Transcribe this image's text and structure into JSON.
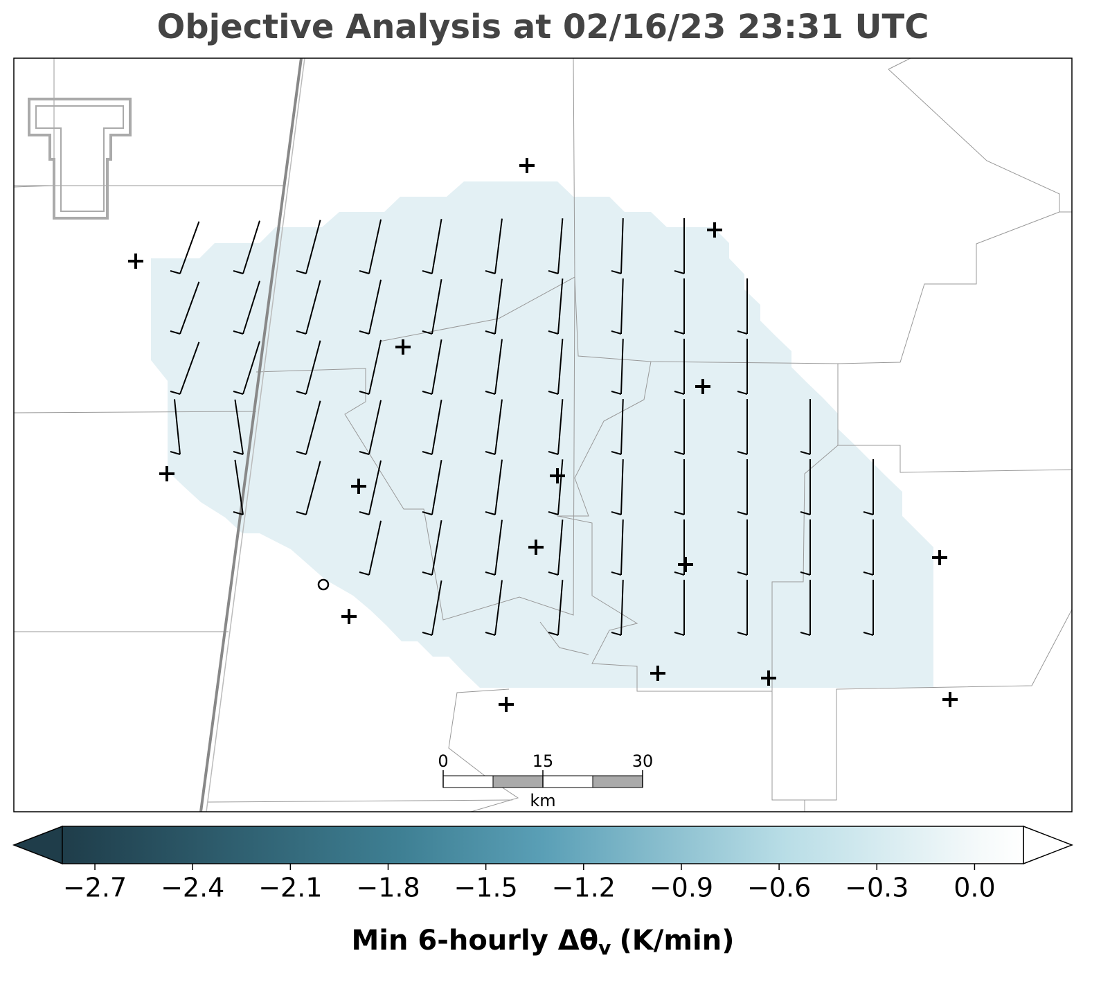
{
  "chart_data": {
    "type": "map",
    "title": "Objective Analysis at 02/16/23 23:31 UTC",
    "colorbar": {
      "clim": [
        -2.8,
        0.15
      ],
      "ticks": [
        {
          "value": -2.7,
          "label": "−2.7"
        },
        {
          "value": -2.4,
          "label": "−2.4"
        },
        {
          "value": -2.1,
          "label": "−2.1"
        },
        {
          "value": -1.8,
          "label": "−1.8"
        },
        {
          "value": -1.5,
          "label": "−1.5"
        },
        {
          "value": -1.2,
          "label": "−1.2"
        },
        {
          "value": -0.9,
          "label": "−0.9"
        },
        {
          "value": -0.6,
          "label": "−0.6"
        },
        {
          "value": -0.3,
          "label": "−0.3"
        },
        {
          "value": 0,
          "label": "0.0"
        }
      ],
      "label": {
        "main": "Min 6-hourly Δθ",
        "subscript": "v",
        "unit": "(K/min)"
      }
    },
    "scale_bar": {
      "ticks": [
        0,
        15,
        30
      ],
      "unit": "km"
    }
  }
}
